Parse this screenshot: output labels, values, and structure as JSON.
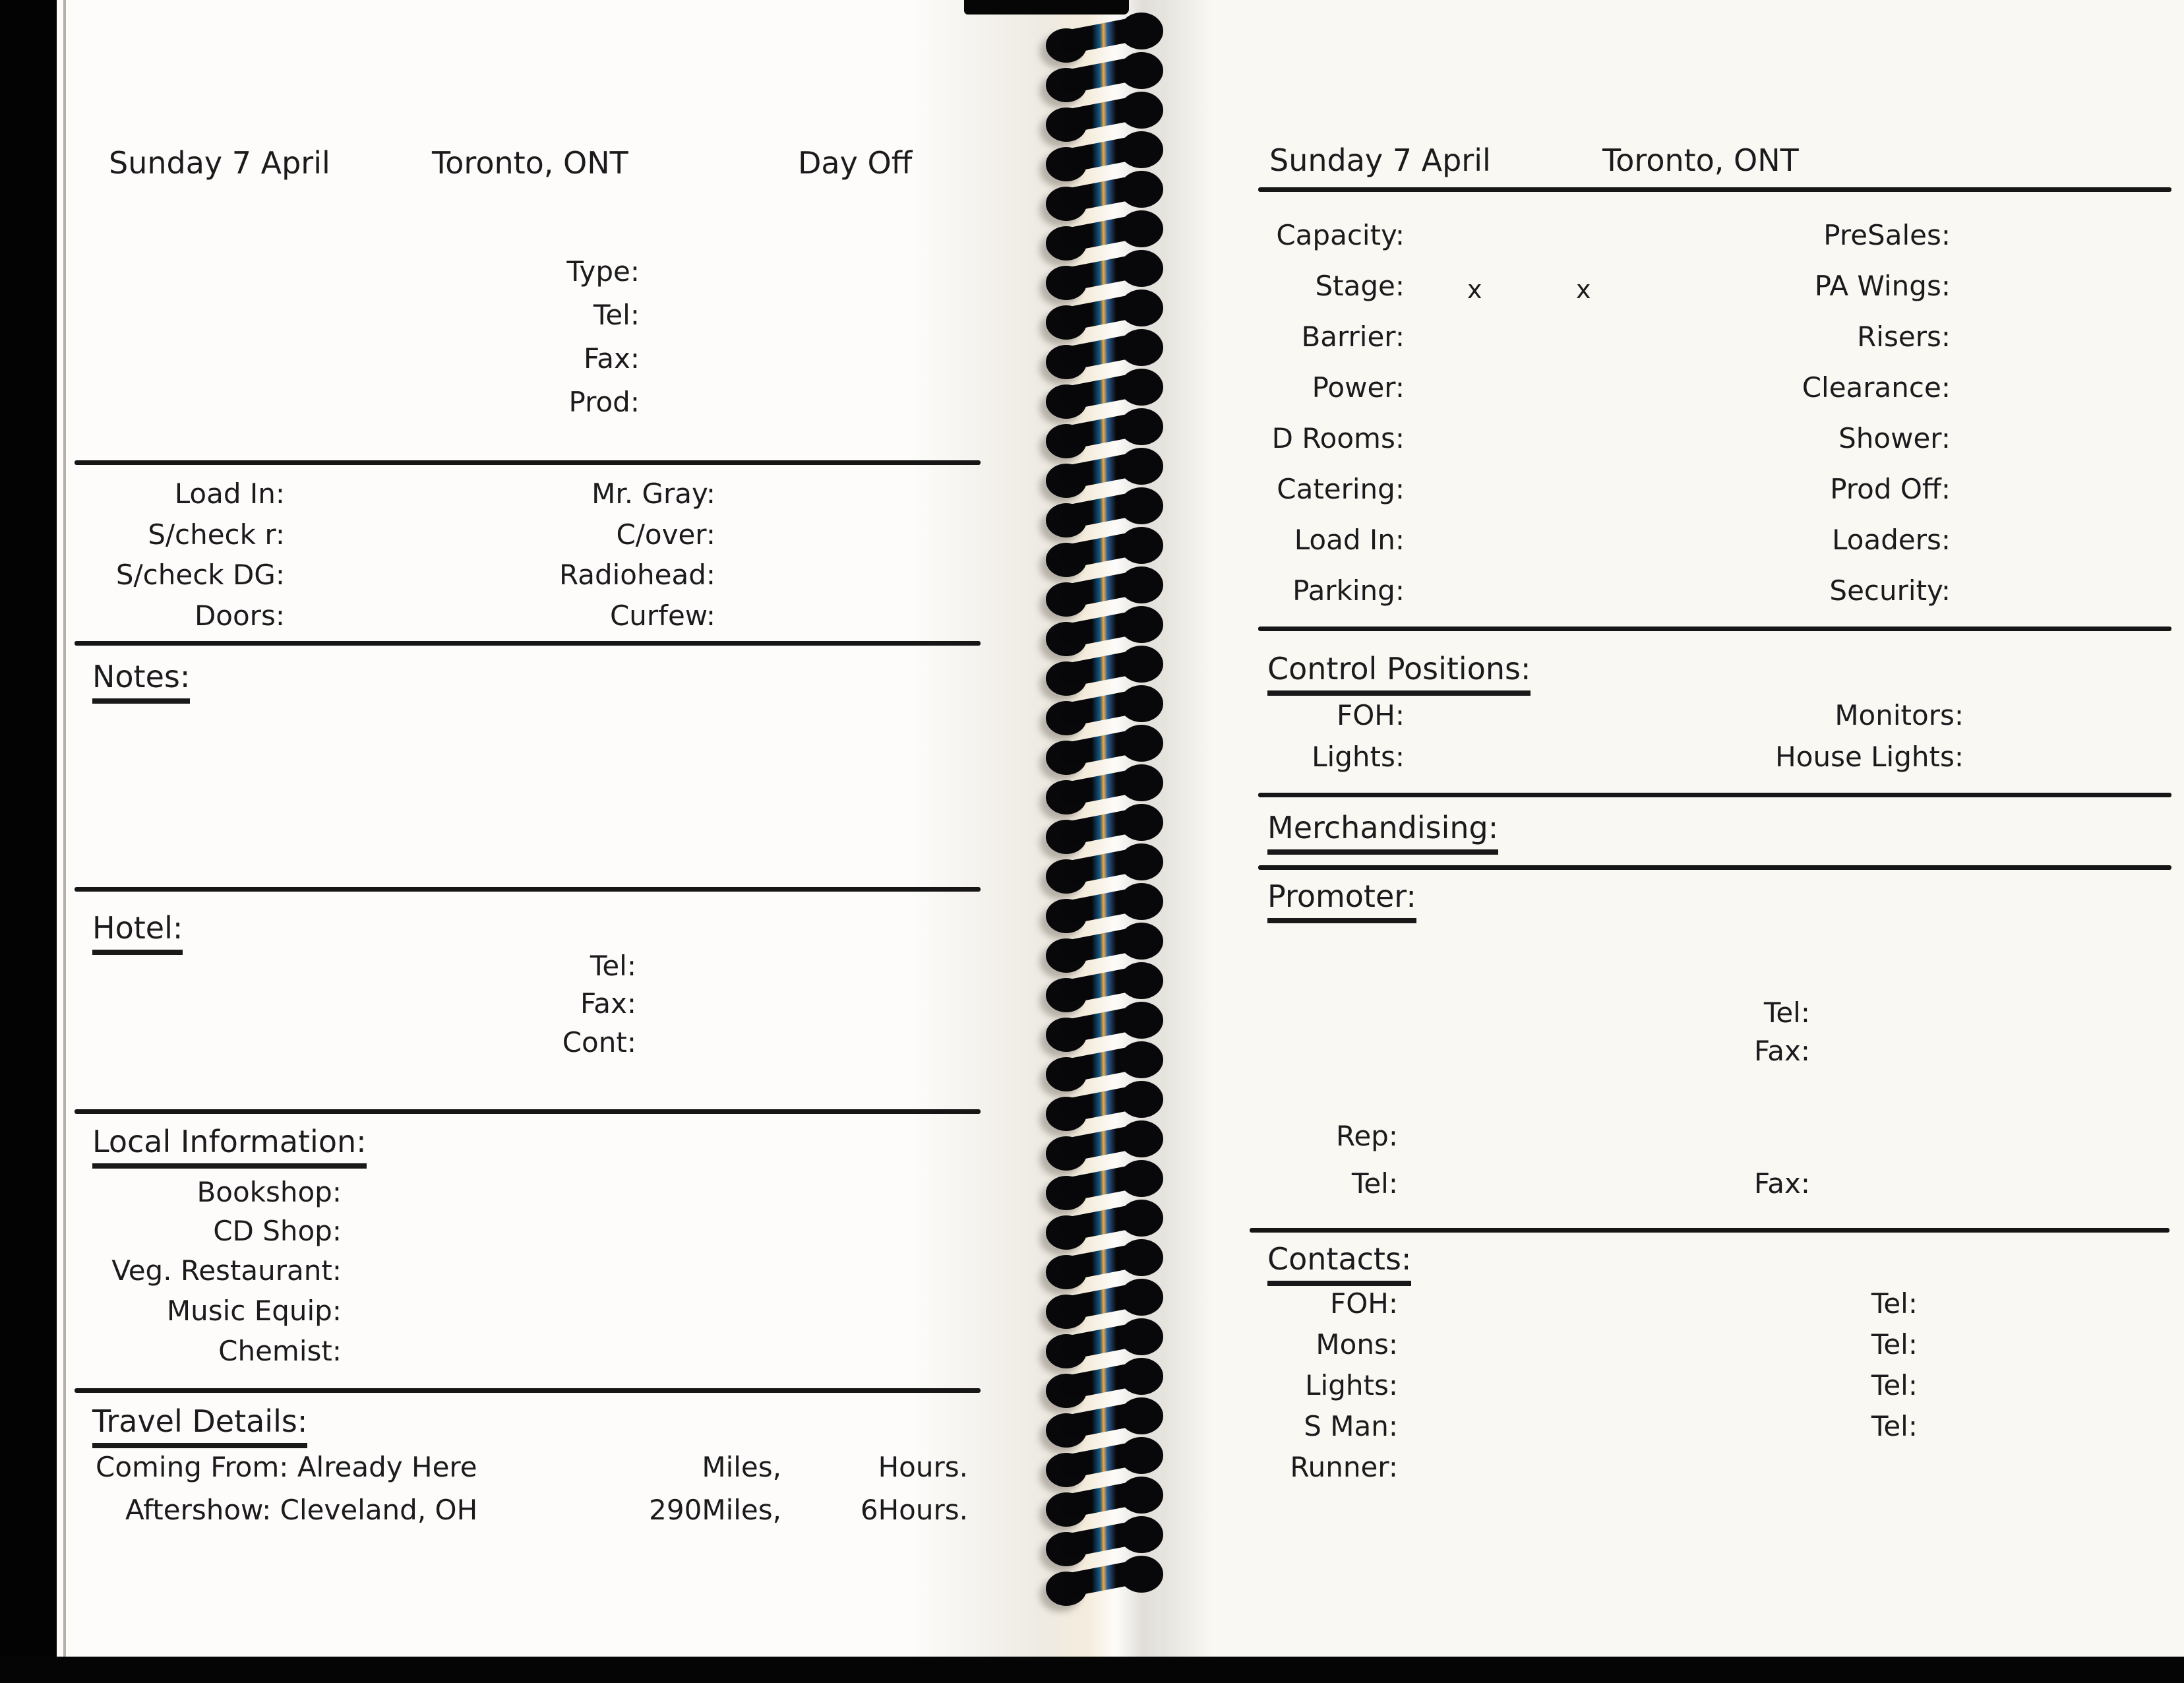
{
  "scan": {
    "left_page": {
      "header": {
        "date": "Sunday 7 April",
        "city": "Toronto, ONT",
        "status": "Day Off"
      },
      "venue_labels": [
        "Type:",
        "Tel:",
        "Fax:",
        "Prod:"
      ],
      "schedule_left": [
        "Load In:",
        "S/check r:",
        "S/check DG:",
        "Doors:"
      ],
      "schedule_right": [
        "Mr. Gray:",
        "C/over:",
        "Radiohead:",
        "Curfew:"
      ],
      "notes_label": "Notes:",
      "hotel_label": "Hotel:",
      "hotel_fields": [
        "Tel:",
        "Fax:",
        "Cont:"
      ],
      "local_label": "Local Information:",
      "local_fields": [
        "Bookshop:",
        "CD Shop:",
        "Veg. Restaurant:",
        "Music Equip:",
        "Chemist:"
      ],
      "travel_label": "Travel Details:",
      "travel_rows": [
        {
          "label": "Coming From:",
          "value": "Already Here",
          "miles": "",
          "miles_unit": "Miles,",
          "hours": "",
          "hours_unit": "Hours."
        },
        {
          "label": "Aftershow:",
          "value": "Cleveland, OH",
          "miles": "290",
          "miles_unit": "Miles,",
          "hours": "6",
          "hours_unit": "Hours."
        }
      ]
    },
    "right_page": {
      "header": {
        "date": "Sunday 7 April",
        "city": "Toronto, ONT"
      },
      "capacity": {
        "left": "Capacity:",
        "right": "PreSales:"
      },
      "stage": {
        "label": "Stage:",
        "x1": "x",
        "x2": "x",
        "right": "PA Wings:"
      },
      "spec_rows": [
        {
          "left": "Barrier:",
          "right": "Risers:"
        },
        {
          "left": "Power:",
          "right": "Clearance:"
        },
        {
          "left": "D Rooms:",
          "right": "Shower:"
        },
        {
          "left": "Catering:",
          "right": "Prod Off:"
        },
        {
          "left": "Load In:",
          "right": "Loaders:"
        },
        {
          "left": "Parking:",
          "right": "Security:"
        }
      ],
      "control_label": "Control Positions:",
      "control_rows": [
        {
          "left": "FOH:",
          "right": "Monitors:"
        },
        {
          "left": "Lights:",
          "right": "House Lights:"
        }
      ],
      "merch_label": "Merchandising:",
      "promoter_label": "Promoter:",
      "promoter_tel": "Tel:",
      "promoter_fax": "Fax:",
      "rep_label": "Rep:",
      "rep_tel": "Tel:",
      "rep_fax": "Fax:",
      "contacts_label": "Contacts:",
      "contact_rows": [
        {
          "name": "FOH:",
          "tel": "Tel:"
        },
        {
          "name": "Mons:",
          "tel": "Tel:"
        },
        {
          "name": "Lights:",
          "tel": "Tel:"
        },
        {
          "name": "S Man:",
          "tel": "Tel:"
        },
        {
          "name": "Runner:",
          "tel": ""
        }
      ]
    },
    "colors": {
      "paper": "#fdfcfa",
      "ink": "#1b1b1d",
      "coil": "#08080b",
      "scan_bg": "#000000"
    }
  }
}
